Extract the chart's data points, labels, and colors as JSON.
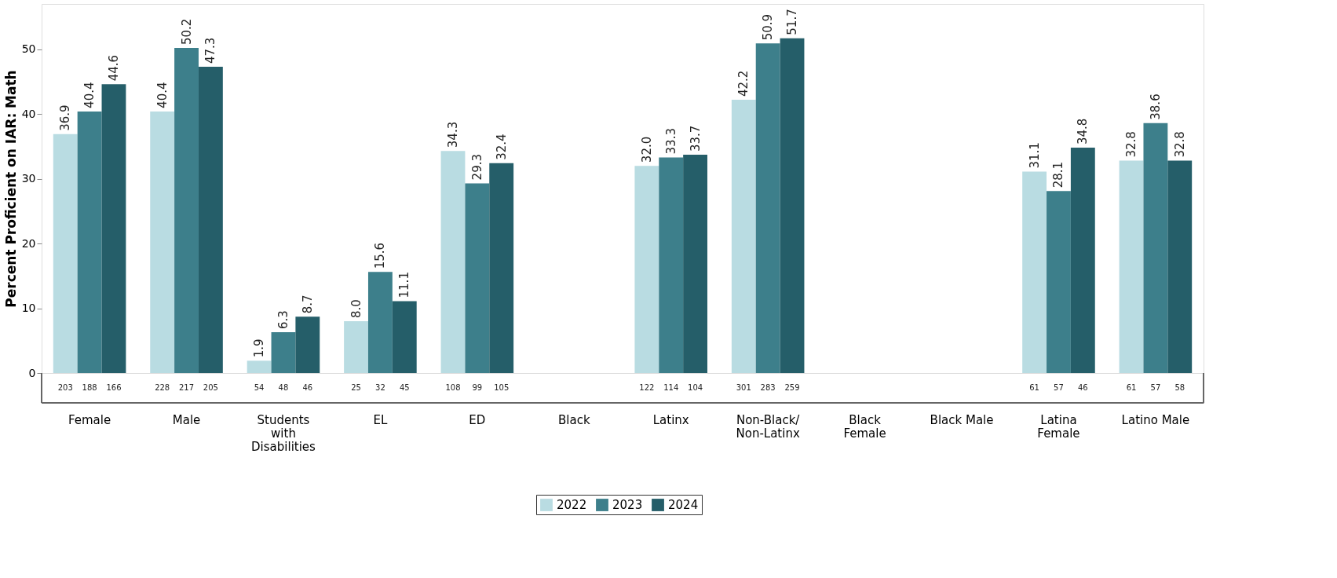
{
  "chart_data": {
    "type": "bar",
    "ylabel": "Percent Proficient on IAR: Math",
    "categories": [
      "Female",
      "Male",
      "Students with Disabilities",
      "EL",
      "ED",
      "Black",
      "Latinx",
      "Non-Black/Non-Latinx",
      "Black Female",
      "Black Male",
      "Latina Female",
      "Latino Male"
    ],
    "series": [
      {
        "name": "2022",
        "color": "#b9dce2",
        "values": [
          36.9,
          40.4,
          1.9,
          8.0,
          34.3,
          null,
          32.0,
          42.2,
          null,
          null,
          31.1,
          32.8
        ],
        "value_labels": [
          "36.9",
          "40.4",
          "1.9",
          "8.0",
          "34.3",
          null,
          "32.0",
          "42.2",
          null,
          null,
          "31.1",
          "32.8"
        ]
      },
      {
        "name": "2023",
        "color": "#3d7f8b",
        "values": [
          40.4,
          50.2,
          6.3,
          15.6,
          29.3,
          null,
          33.3,
          50.9,
          null,
          null,
          28.1,
          38.6
        ],
        "value_labels": [
          "40.4",
          "50.2",
          "6.3",
          "15.6",
          "29.3",
          null,
          "33.3",
          "50.9",
          null,
          null,
          "28.1",
          "38.6"
        ]
      },
      {
        "name": "2024",
        "color": "#255e69",
        "values": [
          44.6,
          47.3,
          8.7,
          11.1,
          32.4,
          null,
          33.7,
          51.7,
          null,
          null,
          34.8,
          32.8
        ],
        "value_labels": [
          "44.6",
          "47.3",
          "8.7",
          "11.1",
          "32.4",
          null,
          "33.7",
          "51.7",
          null,
          null,
          "34.8",
          "32.8"
        ]
      }
    ],
    "ylim": [
      0,
      57
    ],
    "yticks": [
      0,
      10,
      20,
      30,
      40,
      50
    ],
    "grid": false,
    "legend": "bottom",
    "annotations": [
      "203",
      "188",
      "166",
      "228",
      "217",
      "205",
      "54",
      "48",
      "46",
      "25",
      "32",
      "45",
      "108",
      "99",
      "105",
      "122",
      "114",
      "104",
      "301",
      "283",
      "259",
      "61",
      "57",
      "46",
      "61",
      "57",
      "58"
    ]
  }
}
